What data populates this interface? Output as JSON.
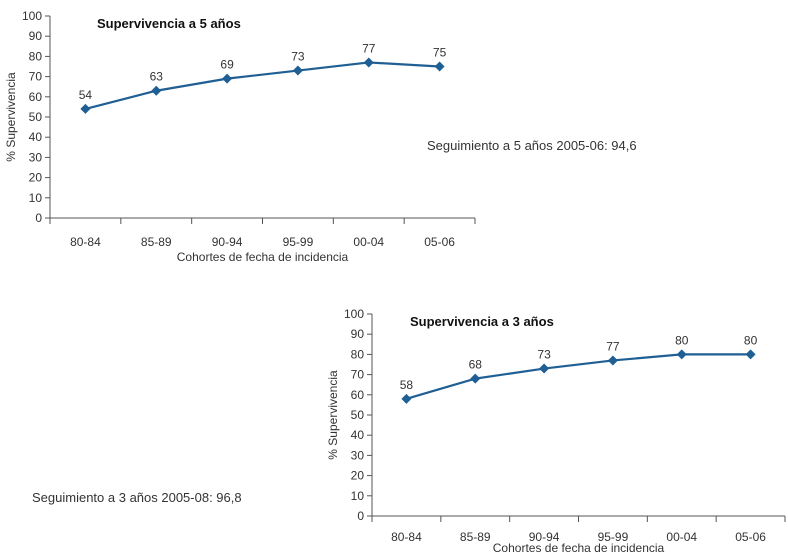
{
  "chart_data": [
    {
      "type": "line",
      "title": "Supervivencia a 5 años",
      "xlabel": "Cohortes de fecha de incidencia",
      "ylabel": "% Supervivencia",
      "categories": [
        "80-84",
        "85-89",
        "90-94",
        "95-99",
        "00-04",
        "05-06"
      ],
      "series": [
        {
          "values": [
            54,
            63,
            69,
            73,
            77,
            75
          ]
        }
      ],
      "data_labels": [
        "54",
        "63",
        "69",
        "73",
        "77",
        "75"
      ],
      "ylim": [
        0,
        100
      ],
      "yticks": [
        0,
        10,
        20,
        30,
        40,
        50,
        60,
        70,
        80,
        90,
        100
      ],
      "grid": false,
      "color": "#1f5f94",
      "marker": "diamond"
    },
    {
      "type": "line",
      "title": "Supervivencia a 3 años",
      "xlabel": "Cohortes de fecha de incidencia",
      "ylabel": "% Supervivencia",
      "categories": [
        "80-84",
        "85-89",
        "90-94",
        "95-99",
        "00-04",
        "05-06"
      ],
      "series": [
        {
          "values": [
            58,
            68,
            73,
            77,
            80,
            80
          ]
        }
      ],
      "data_labels": [
        "58",
        "68",
        "73",
        "77",
        "80",
        "80"
      ],
      "ylim": [
        0,
        100
      ],
      "yticks": [
        0,
        10,
        20,
        30,
        40,
        50,
        60,
        70,
        80,
        90,
        100
      ],
      "grid": false,
      "color": "#1f5f94",
      "marker": "diamond"
    }
  ],
  "notes": {
    "followup_5y": "Seguimiento a 5 años 2005-06: 94,6",
    "followup_3y": "Seguimiento a 3 años 2005-08: 96,8"
  }
}
